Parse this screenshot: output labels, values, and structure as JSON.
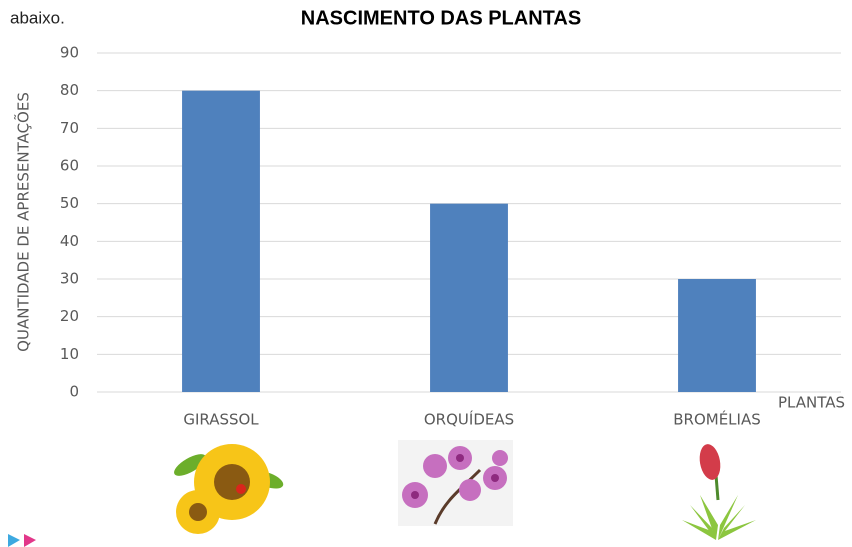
{
  "chart_data": {
    "type": "bar",
    "lead_text": "abaixo.",
    "title": "NASCIMENTO DAS PLANTAS",
    "y_label": "QUANTIDADE DE APRESENTAÇÕES",
    "x_label": "PLANTAS",
    "categories": [
      "GIRASSOL",
      "ORQUÍDEAS",
      "BROMÉLIAS"
    ],
    "values": [
      80,
      50,
      30
    ],
    "color": "#4f81bd",
    "ylim": [
      0,
      90
    ],
    "yticks": [
      0,
      10,
      20,
      30,
      40,
      50,
      60,
      70,
      80,
      90
    ],
    "grid": true
  }
}
